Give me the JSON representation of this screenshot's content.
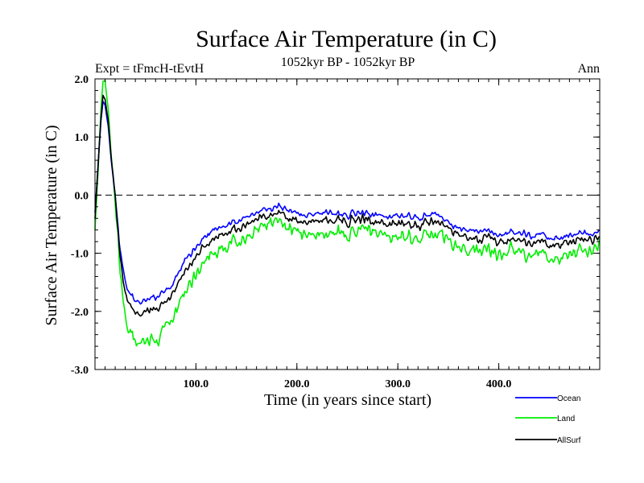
{
  "chart_data": {
    "type": "line",
    "title": "Surface Air Temperature (in C)",
    "subtitle_left": "Expt = tFmcH-tEvtH",
    "subtitle_center": "1052kyr BP - 1052kyr BP",
    "subtitle_right": "Ann",
    "xlabel": "Time (in years since start)",
    "ylabel": "Surface Air Temperature (in C)",
    "xlim": [
      0,
      500
    ],
    "ylim": [
      -3.0,
      2.0
    ],
    "x_ticks": [
      100,
      200,
      300,
      400
    ],
    "x_tick_labels": [
      "100.0",
      "200.0",
      "300.0",
      "400.0"
    ],
    "y_ticks": [
      -3.0,
      -2.0,
      -1.0,
      0.0,
      1.0,
      2.0
    ],
    "y_tick_labels": [
      "-3.0",
      "-2.0",
      "-1.0",
      "0.0",
      "1.0",
      "2.0"
    ],
    "reference_line": 0.0,
    "legend_position": "bottom-right",
    "series": [
      {
        "name": "Ocean",
        "color": "#0000ff",
        "points": [
          [
            0,
            -0.3
          ],
          [
            3,
            0.5
          ],
          [
            6,
            1.3
          ],
          [
            8,
            1.6
          ],
          [
            10,
            1.55
          ],
          [
            13,
            1.2
          ],
          [
            16,
            0.6
          ],
          [
            20,
            0.0
          ],
          [
            24,
            -0.8
          ],
          [
            28,
            -1.3
          ],
          [
            32,
            -1.6
          ],
          [
            36,
            -1.75
          ],
          [
            40,
            -1.8
          ],
          [
            45,
            -1.85
          ],
          [
            50,
            -1.8
          ],
          [
            55,
            -1.75
          ],
          [
            60,
            -1.78
          ],
          [
            65,
            -1.7
          ],
          [
            70,
            -1.65
          ],
          [
            75,
            -1.6
          ],
          [
            80,
            -1.4
          ],
          [
            85,
            -1.3
          ],
          [
            90,
            -1.1
          ],
          [
            95,
            -1.0
          ],
          [
            100,
            -0.9
          ],
          [
            110,
            -0.7
          ],
          [
            120,
            -0.55
          ],
          [
            130,
            -0.5
          ],
          [
            140,
            -0.45
          ],
          [
            150,
            -0.4
          ],
          [
            160,
            -0.3
          ],
          [
            170,
            -0.25
          ],
          [
            180,
            -0.2
          ],
          [
            190,
            -0.25
          ],
          [
            200,
            -0.3
          ],
          [
            210,
            -0.35
          ],
          [
            220,
            -0.3
          ],
          [
            230,
            -0.3
          ],
          [
            240,
            -0.3
          ],
          [
            250,
            -0.35
          ],
          [
            260,
            -0.3
          ],
          [
            270,
            -0.3
          ],
          [
            280,
            -0.35
          ],
          [
            290,
            -0.4
          ],
          [
            300,
            -0.35
          ],
          [
            310,
            -0.35
          ],
          [
            320,
            -0.4
          ],
          [
            330,
            -0.35
          ],
          [
            340,
            -0.35
          ],
          [
            350,
            -0.5
          ],
          [
            360,
            -0.55
          ],
          [
            370,
            -0.6
          ],
          [
            380,
            -0.62
          ],
          [
            390,
            -0.6
          ],
          [
            400,
            -0.7
          ],
          [
            410,
            -0.65
          ],
          [
            420,
            -0.65
          ],
          [
            430,
            -0.7
          ],
          [
            440,
            -0.65
          ],
          [
            450,
            -0.75
          ],
          [
            460,
            -0.75
          ],
          [
            470,
            -0.7
          ],
          [
            480,
            -0.65
          ],
          [
            490,
            -0.65
          ],
          [
            500,
            -0.65
          ]
        ],
        "noise": 0.09
      },
      {
        "name": "Land",
        "color": "#00ee00",
        "points": [
          [
            0,
            -0.6
          ],
          [
            3,
            0.4
          ],
          [
            6,
            1.5
          ],
          [
            8,
            1.95
          ],
          [
            10,
            1.95
          ],
          [
            13,
            1.5
          ],
          [
            16,
            0.7
          ],
          [
            20,
            -0.1
          ],
          [
            24,
            -1.1
          ],
          [
            28,
            -1.9
          ],
          [
            32,
            -2.3
          ],
          [
            36,
            -2.45
          ],
          [
            40,
            -2.5
          ],
          [
            45,
            -2.55
          ],
          [
            50,
            -2.5
          ],
          [
            55,
            -2.45
          ],
          [
            60,
            -2.55
          ],
          [
            65,
            -2.4
          ],
          [
            70,
            -2.3
          ],
          [
            75,
            -2.2
          ],
          [
            80,
            -2.0
          ],
          [
            85,
            -1.8
          ],
          [
            90,
            -1.7
          ],
          [
            95,
            -1.5
          ],
          [
            100,
            -1.35
          ],
          [
            110,
            -1.1
          ],
          [
            120,
            -0.95
          ],
          [
            130,
            -0.85
          ],
          [
            140,
            -0.8
          ],
          [
            150,
            -0.75
          ],
          [
            160,
            -0.6
          ],
          [
            170,
            -0.5
          ],
          [
            180,
            -0.45
          ],
          [
            190,
            -0.6
          ],
          [
            200,
            -0.6
          ],
          [
            210,
            -0.7
          ],
          [
            220,
            -0.65
          ],
          [
            230,
            -0.65
          ],
          [
            240,
            -0.6
          ],
          [
            250,
            -0.7
          ],
          [
            260,
            -0.6
          ],
          [
            270,
            -0.55
          ],
          [
            280,
            -0.65
          ],
          [
            290,
            -0.75
          ],
          [
            300,
            -0.7
          ],
          [
            310,
            -0.7
          ],
          [
            320,
            -0.75
          ],
          [
            330,
            -0.7
          ],
          [
            340,
            -0.7
          ],
          [
            350,
            -0.8
          ],
          [
            360,
            -0.9
          ],
          [
            370,
            -1.0
          ],
          [
            380,
            -0.95
          ],
          [
            390,
            -0.95
          ],
          [
            400,
            -1.0
          ],
          [
            410,
            -0.95
          ],
          [
            420,
            -1.0
          ],
          [
            430,
            -1.05
          ],
          [
            440,
            -0.95
          ],
          [
            450,
            -1.1
          ],
          [
            460,
            -1.1
          ],
          [
            470,
            -1.0
          ],
          [
            480,
            -0.95
          ],
          [
            490,
            -0.95
          ],
          [
            500,
            -0.9
          ]
        ],
        "noise": 0.2
      },
      {
        "name": "AllSurf",
        "color": "#000000",
        "points": [
          [
            0,
            -0.4
          ],
          [
            3,
            0.5
          ],
          [
            6,
            1.35
          ],
          [
            8,
            1.7
          ],
          [
            10,
            1.65
          ],
          [
            13,
            1.3
          ],
          [
            16,
            0.65
          ],
          [
            20,
            0.0
          ],
          [
            24,
            -0.9
          ],
          [
            28,
            -1.5
          ],
          [
            32,
            -1.8
          ],
          [
            36,
            -1.95
          ],
          [
            40,
            -2.0
          ],
          [
            45,
            -2.05
          ],
          [
            50,
            -2.0
          ],
          [
            55,
            -1.95
          ],
          [
            60,
            -2.0
          ],
          [
            65,
            -1.9
          ],
          [
            70,
            -1.85
          ],
          [
            75,
            -1.75
          ],
          [
            80,
            -1.6
          ],
          [
            85,
            -1.45
          ],
          [
            90,
            -1.3
          ],
          [
            95,
            -1.15
          ],
          [
            100,
            -1.05
          ],
          [
            110,
            -0.85
          ],
          [
            120,
            -0.7
          ],
          [
            130,
            -0.62
          ],
          [
            140,
            -0.58
          ],
          [
            150,
            -0.52
          ],
          [
            160,
            -0.42
          ],
          [
            170,
            -0.35
          ],
          [
            180,
            -0.3
          ],
          [
            190,
            -0.38
          ],
          [
            200,
            -0.42
          ],
          [
            210,
            -0.48
          ],
          [
            220,
            -0.42
          ],
          [
            230,
            -0.42
          ],
          [
            240,
            -0.4
          ],
          [
            250,
            -0.48
          ],
          [
            260,
            -0.42
          ],
          [
            270,
            -0.4
          ],
          [
            280,
            -0.47
          ],
          [
            290,
            -0.53
          ],
          [
            300,
            -0.48
          ],
          [
            310,
            -0.48
          ],
          [
            320,
            -0.53
          ],
          [
            330,
            -0.48
          ],
          [
            340,
            -0.48
          ],
          [
            350,
            -0.6
          ],
          [
            360,
            -0.68
          ],
          [
            370,
            -0.75
          ],
          [
            380,
            -0.75
          ],
          [
            390,
            -0.73
          ],
          [
            400,
            -0.82
          ],
          [
            410,
            -0.77
          ],
          [
            420,
            -0.78
          ],
          [
            430,
            -0.83
          ],
          [
            440,
            -0.77
          ],
          [
            450,
            -0.88
          ],
          [
            460,
            -0.88
          ],
          [
            470,
            -0.82
          ],
          [
            480,
            -0.77
          ],
          [
            490,
            -0.77
          ],
          [
            500,
            -0.75
          ]
        ],
        "noise": 0.12
      }
    ]
  }
}
